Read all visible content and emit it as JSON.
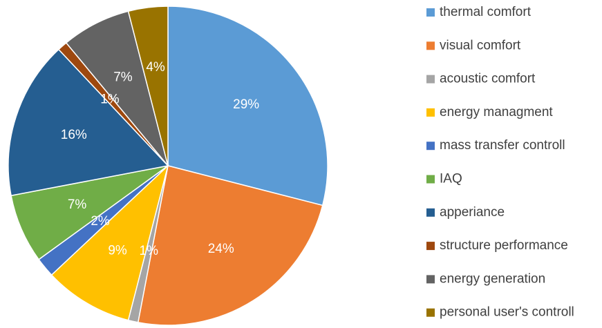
{
  "chart_data": {
    "type": "pie",
    "categories": [
      "thermal comfort",
      "visual comfort",
      "acoustic comfort",
      "energy managment",
      "mass transfer controll",
      "IAQ",
      "apperiance",
      "structure performance",
      "energy generation",
      "personal user's controll"
    ],
    "values": [
      29,
      24,
      1,
      9,
      2,
      7,
      16,
      1,
      7,
      4
    ],
    "value_labels": [
      "29%",
      "24%",
      "1%",
      "9%",
      "2%",
      "7%",
      "16%",
      "1%",
      "7%",
      "4%"
    ],
    "colors": [
      "#5b9bd5",
      "#ed7d31",
      "#a5a5a5",
      "#ffc000",
      "#4472c4",
      "#70ad47",
      "#255e91",
      "#9e480e",
      "#636363",
      "#997300"
    ],
    "legend": "right"
  }
}
